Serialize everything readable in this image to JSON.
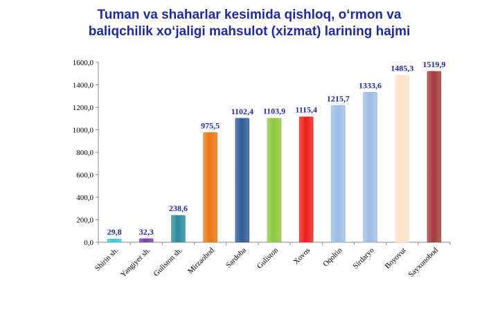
{
  "chart_data": {
    "type": "bar",
    "title_line1": "Tuman va shaharlar kesimida qishloq, o‘rmon va",
    "title_line2": "baliqchilik xo‘jaligi mahsulot (xizmat) larining hajmi",
    "categories": [
      "Shirin sh.",
      "Yangiyer sh.",
      "Guliston sh.",
      "Mirzaobod",
      "Sardoba",
      "Guliston",
      "Xovos",
      "Oqoltin",
      "Sirdaryo",
      "Boyovut",
      "Sayxunobod"
    ],
    "values": [
      29.8,
      32.3,
      238.6,
      975.5,
      1102.4,
      1103.9,
      1115.4,
      1215.7,
      1333.6,
      1485.3,
      1519.9
    ],
    "value_labels": [
      "29,8",
      "32,3",
      "238,6",
      "975,5",
      "1102,4",
      "1103,9",
      "1115,4",
      "1215,7",
      "1333,6",
      "1485,3",
      "1519,9"
    ],
    "ylim": [
      0,
      1600
    ],
    "yticks": [
      "0,0",
      "200,0",
      "400,0",
      "600,0",
      "800,0",
      "1000,0",
      "1200,0",
      "1400,0",
      "1600,0"
    ],
    "colors": [
      "#3fc3e0",
      "#7b3fa8",
      "#2a8a9c",
      "#e87711",
      "#2e5b94",
      "#8cc63f",
      "#ee1c1c",
      "#9cbde6",
      "#9cbde6",
      "#fde3c8",
      "#a33b3b"
    ],
    "grid": false,
    "legend": "none"
  }
}
